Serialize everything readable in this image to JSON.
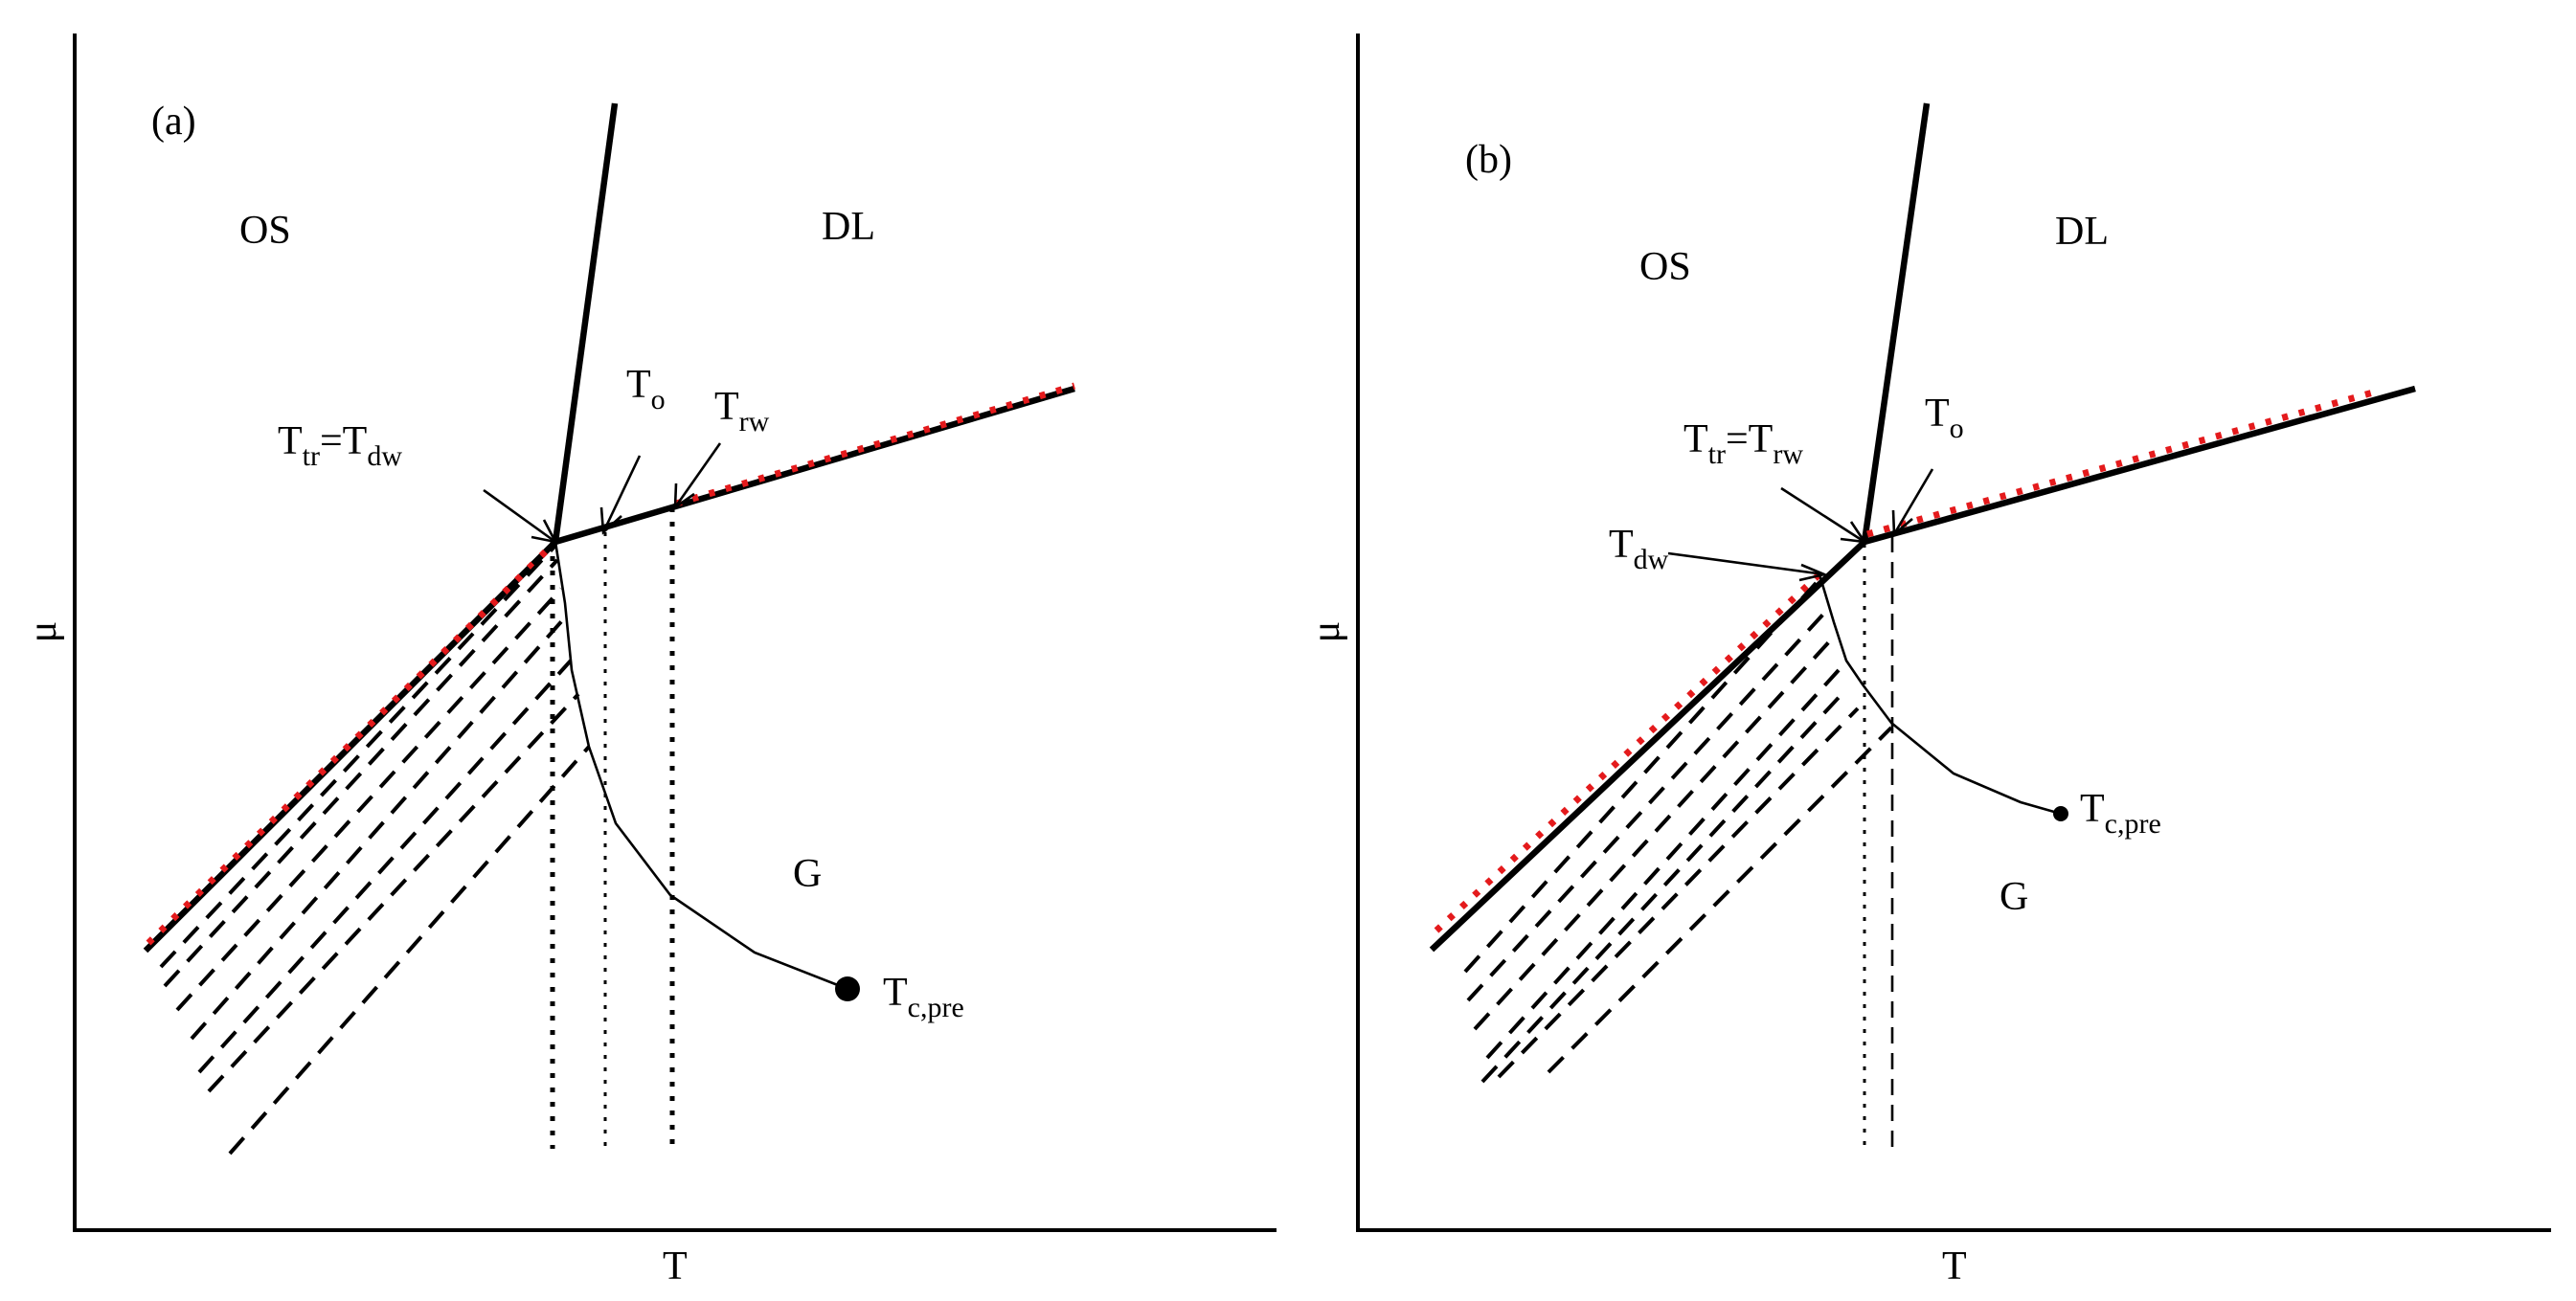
{
  "panel_a": {
    "tag": "(a)",
    "axis_x": "T",
    "axis_y": "μ",
    "region_os": "OS",
    "region_dl": "DL",
    "region_g": "G",
    "ttr_main": "T",
    "ttr_sub": "tr",
    "tdw_main": "T",
    "tdw_sub": "dw",
    "eq": "=",
    "to_main": "T",
    "to_sub": "o",
    "trw_main": "T",
    "trw_sub": "rw",
    "tc_main": "T",
    "tc_sub": "c,pre"
  },
  "panel_b": {
    "tag": "(b)",
    "axis_x": "T",
    "axis_y": "μ",
    "region_os": "OS",
    "region_dl": "DL",
    "region_g": "G",
    "ttr_main": "T",
    "ttr_sub": "tr",
    "trw_main": "T",
    "trw_sub": "rw",
    "eq": "=",
    "to_main": "T",
    "to_sub": "o",
    "tdw_main": "T",
    "tdw_sub": "dw",
    "tc_main": "T",
    "tc_sub": "c,pre"
  },
  "colors": {
    "prewetting_dotted": "#e41a1c",
    "lines": "#000000"
  }
}
